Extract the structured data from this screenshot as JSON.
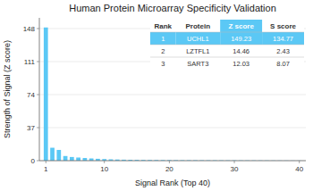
{
  "chart_data": {
    "type": "bar",
    "title": "Human Protein Microarray Specificity Validation",
    "x_label": "Signal Rank (Top 40)",
    "y_label": "Strength of Signal (Z score)",
    "x": [
      1,
      2,
      3,
      4,
      5,
      6,
      7,
      8,
      9,
      10,
      11,
      12,
      13,
      14,
      15,
      16,
      17,
      18,
      19,
      20,
      21,
      22,
      23,
      24,
      25,
      26,
      27,
      28,
      29,
      30,
      31,
      32,
      33,
      34,
      35,
      36,
      37,
      38,
      39,
      40
    ],
    "values": [
      149.23,
      14.46,
      12.03,
      5.2,
      4.1,
      3.5,
      3.0,
      2.5,
      2.1,
      1.8,
      1.5,
      1.3,
      1.1,
      1.0,
      0.9,
      0.8,
      0.75,
      0.7,
      0.65,
      0.6,
      0.55,
      0.5,
      0.48,
      0.45,
      0.42,
      0.4,
      0.38,
      0.36,
      0.34,
      0.32,
      0.3,
      0.28,
      0.26,
      0.24,
      0.22,
      0.2,
      0.18,
      0.16,
      0.14,
      0.12
    ],
    "color": "#5bc8f5",
    "xlim": [
      0,
      41
    ],
    "xticks": [
      1,
      10,
      20,
      30,
      40
    ],
    "ylim": [
      0,
      160
    ],
    "yticks": [
      0,
      37,
      74,
      111,
      148
    ],
    "grid": true,
    "table": {
      "header": [
        "Rank",
        "Protein",
        "Z score",
        "S score"
      ],
      "rows": [
        [
          "1",
          "UCHL1",
          "149.23",
          "134.77"
        ],
        [
          "2",
          "LZTFL1",
          "14.46",
          "2.43"
        ],
        [
          "3",
          "SART3",
          "12.03",
          "8.07"
        ]
      ],
      "color": "#5bc8f5"
    }
  }
}
